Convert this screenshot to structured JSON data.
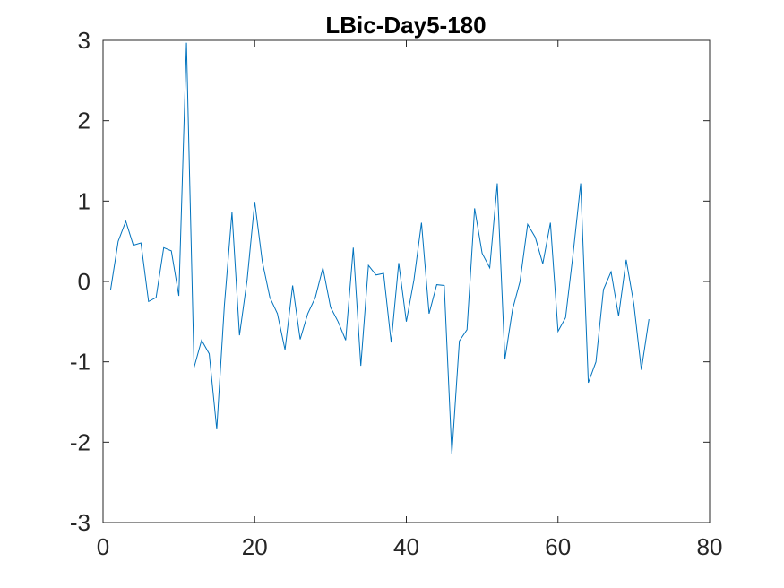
{
  "chart_data": {
    "type": "line",
    "title": "LBic-Day5-180",
    "xlabel": "",
    "ylabel": "",
    "xlim": [
      0,
      80
    ],
    "ylim": [
      -3,
      3
    ],
    "xticks": [
      0,
      20,
      40,
      60,
      80
    ],
    "yticks": [
      -3,
      -2,
      -1,
      0,
      1,
      2,
      3
    ],
    "xtick_labels": [
      "0",
      "20",
      "40",
      "60",
      "80"
    ],
    "ytick_labels": [
      "-3",
      "-2",
      "-1",
      "0",
      "1",
      "2",
      "3"
    ],
    "grid": false,
    "line_color": "#0072BD",
    "series": [
      {
        "x": [
          1,
          2,
          3,
          4,
          5,
          6,
          7,
          8,
          9,
          10,
          11,
          12,
          13,
          14,
          15,
          16,
          17,
          18,
          19,
          20,
          21,
          22,
          23,
          24,
          25,
          26,
          27,
          28,
          29,
          30,
          31,
          32,
          33,
          34,
          35,
          36,
          37,
          38,
          39,
          40,
          41,
          42,
          43,
          44,
          45,
          46,
          47,
          48,
          49,
          50,
          51,
          52,
          53,
          54,
          55,
          56,
          57,
          58,
          59,
          60,
          61,
          62,
          63,
          64,
          65,
          66,
          67,
          68,
          69,
          70,
          71,
          72
        ],
        "values": [
          -0.1,
          0.5,
          0.75,
          0.45,
          0.48,
          -0.25,
          -0.2,
          0.42,
          0.38,
          -0.18,
          2.97,
          -1.07,
          -0.73,
          -0.9,
          -1.84,
          -0.3,
          0.86,
          -0.67,
          0.02,
          0.99,
          0.25,
          -0.2,
          -0.4,
          -0.85,
          -0.05,
          -0.72,
          -0.4,
          -0.2,
          0.17,
          -0.32,
          -0.5,
          -0.73,
          0.42,
          -1.05,
          0.2,
          0.08,
          0.1,
          -0.76,
          0.23,
          -0.5,
          0.02,
          0.73,
          -0.4,
          -0.04,
          -0.05,
          -2.15,
          -0.74,
          -0.6,
          0.91,
          0.35,
          0.17,
          1.22,
          -0.97,
          -0.35,
          0.0,
          0.71,
          0.55,
          0.22,
          0.73,
          -0.62,
          -0.45,
          0.35,
          1.22,
          -1.26,
          -1.0,
          -0.1,
          0.12,
          -0.43,
          0.27,
          -0.28,
          -1.1,
          -0.47
        ]
      }
    ]
  }
}
